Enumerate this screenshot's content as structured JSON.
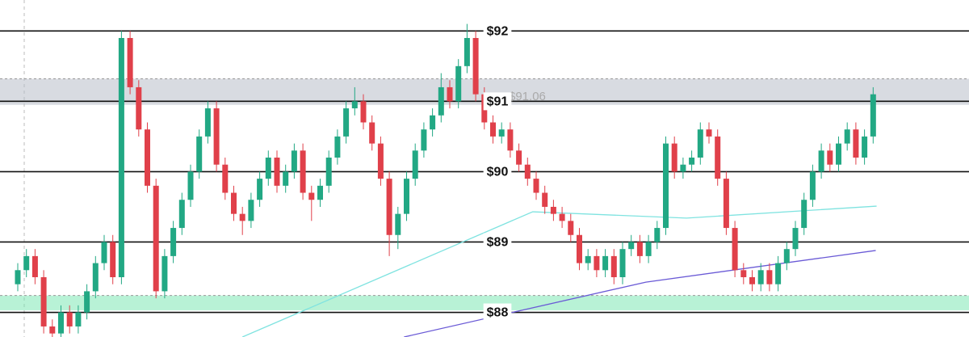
{
  "chart_data": {
    "type": "candlestick",
    "ylim": [
      87.65,
      92.44
    ],
    "up_color": "#22a884",
    "down_color": "#e0404a",
    "levels": [
      {
        "value": 92,
        "label": "$92"
      },
      {
        "value": 91,
        "label": "$91"
      },
      {
        "value": 90,
        "label": "$90"
      },
      {
        "value": 89,
        "label": "$89"
      },
      {
        "value": 88,
        "label": "$88"
      }
    ],
    "price_label": {
      "value": 91.06,
      "label": "$91.06"
    },
    "zones": [
      {
        "from": 90.95,
        "to": 91.32,
        "color": "#b8bec8"
      },
      {
        "from": 88.03,
        "to": 88.24,
        "color": "#7ee8b5"
      }
    ],
    "lines": [
      {
        "color": "#6a5ad6",
        "x": [
          44.7,
          72.7,
          99.3
        ],
        "values": [
          87.65,
          88.43,
          88.88
        ]
      },
      {
        "color": "#7fe3e0",
        "x": [
          26,
          59.6,
          77.4,
          99.4
        ],
        "values": [
          87.65,
          89.43,
          89.34,
          89.51
        ]
      }
    ],
    "ohlc": [
      [
        88.4,
        88.7,
        88.3,
        88.6
      ],
      [
        88.6,
        88.9,
        88.5,
        88.8
      ],
      [
        88.8,
        88.9,
        88.4,
        88.5
      ],
      [
        88.5,
        88.6,
        87.7,
        87.8
      ],
      [
        87.8,
        87.9,
        87.6,
        87.7
      ],
      [
        87.7,
        88.1,
        87.6,
        88.0
      ],
      [
        88.0,
        88.1,
        87.7,
        87.8
      ],
      [
        87.8,
        88.1,
        87.7,
        88.0
      ],
      [
        88.0,
        88.4,
        87.9,
        88.3
      ],
      [
        88.3,
        88.8,
        88.2,
        88.7
      ],
      [
        88.7,
        89.1,
        88.6,
        89.0
      ],
      [
        89.0,
        89.1,
        88.4,
        88.5
      ],
      [
        88.5,
        92.0,
        88.4,
        91.9
      ],
      [
        91.9,
        92.0,
        91.1,
        91.2
      ],
      [
        91.2,
        91.3,
        90.5,
        90.6
      ],
      [
        90.6,
        90.7,
        89.7,
        89.8
      ],
      [
        89.8,
        89.9,
        88.2,
        88.3
      ],
      [
        88.3,
        88.9,
        88.2,
        88.8
      ],
      [
        88.8,
        89.3,
        88.7,
        89.2
      ],
      [
        89.2,
        89.7,
        89.1,
        89.6
      ],
      [
        89.6,
        90.1,
        89.5,
        90.0
      ],
      [
        90.0,
        90.6,
        89.9,
        90.5
      ],
      [
        90.5,
        91.0,
        90.4,
        90.9
      ],
      [
        90.9,
        91.0,
        90.0,
        90.1
      ],
      [
        90.1,
        90.2,
        89.6,
        89.7
      ],
      [
        89.7,
        89.8,
        89.3,
        89.4
      ],
      [
        89.4,
        89.5,
        89.1,
        89.3
      ],
      [
        89.3,
        89.7,
        89.2,
        89.6
      ],
      [
        89.6,
        90.0,
        89.5,
        89.9
      ],
      [
        89.9,
        90.3,
        89.8,
        90.2
      ],
      [
        90.2,
        90.3,
        89.7,
        89.8
      ],
      [
        89.8,
        90.1,
        89.7,
        90.0
      ],
      [
        90.0,
        90.4,
        89.9,
        90.3
      ],
      [
        90.3,
        90.4,
        89.6,
        89.7
      ],
      [
        89.7,
        89.8,
        89.3,
        89.6
      ],
      [
        89.6,
        89.9,
        89.5,
        89.8
      ],
      [
        89.8,
        90.3,
        89.7,
        90.2
      ],
      [
        90.2,
        90.6,
        90.1,
        90.5
      ],
      [
        90.5,
        91.0,
        90.4,
        90.9
      ],
      [
        90.9,
        91.2,
        90.8,
        91.0
      ],
      [
        91.0,
        91.1,
        90.6,
        90.7
      ],
      [
        90.7,
        90.8,
        90.3,
        90.4
      ],
      [
        90.4,
        90.5,
        89.8,
        89.9
      ],
      [
        89.9,
        90.0,
        88.8,
        89.1
      ],
      [
        89.1,
        89.5,
        88.9,
        89.4
      ],
      [
        89.4,
        90.0,
        89.3,
        89.9
      ],
      [
        89.9,
        90.4,
        89.8,
        90.3
      ],
      [
        90.3,
        90.7,
        90.2,
        90.6
      ],
      [
        90.6,
        90.9,
        90.5,
        90.8
      ],
      [
        90.8,
        91.4,
        90.7,
        91.2
      ],
      [
        91.2,
        91.3,
        90.9,
        91.0
      ],
      [
        91.0,
        91.6,
        90.9,
        91.5
      ],
      [
        91.5,
        92.1,
        91.4,
        91.9
      ],
      [
        91.9,
        92.0,
        91.0,
        91.1
      ],
      [
        91.1,
        91.2,
        90.6,
        90.7
      ],
      [
        90.7,
        90.8,
        90.4,
        90.5
      ],
      [
        90.5,
        90.7,
        90.4,
        90.6
      ],
      [
        90.6,
        90.7,
        90.2,
        90.3
      ],
      [
        90.3,
        90.4,
        90.0,
        90.1
      ],
      [
        90.1,
        90.2,
        89.8,
        89.9
      ],
      [
        89.9,
        90.0,
        89.6,
        89.7
      ],
      [
        89.7,
        89.8,
        89.4,
        89.5
      ],
      [
        89.5,
        89.6,
        89.3,
        89.4
      ],
      [
        89.4,
        89.5,
        89.2,
        89.3
      ],
      [
        89.3,
        89.4,
        89.0,
        89.1
      ],
      [
        89.1,
        89.2,
        88.6,
        88.7
      ],
      [
        88.7,
        88.9,
        88.6,
        88.8
      ],
      [
        88.8,
        88.9,
        88.5,
        88.6
      ],
      [
        88.6,
        88.9,
        88.5,
        88.8
      ],
      [
        88.8,
        88.9,
        88.4,
        88.5
      ],
      [
        88.5,
        89.0,
        88.4,
        88.9
      ],
      [
        88.9,
        89.1,
        88.8,
        89.0
      ],
      [
        89.0,
        89.1,
        88.7,
        88.8
      ],
      [
        88.8,
        89.1,
        88.7,
        89.0
      ],
      [
        89.0,
        89.3,
        88.9,
        89.2
      ],
      [
        89.2,
        90.5,
        89.1,
        90.4
      ],
      [
        90.4,
        90.5,
        89.9,
        90.0
      ],
      [
        90.0,
        90.2,
        89.9,
        90.1
      ],
      [
        90.1,
        90.3,
        90.0,
        90.2
      ],
      [
        90.2,
        90.7,
        90.1,
        90.6
      ],
      [
        90.6,
        90.7,
        90.4,
        90.5
      ],
      [
        90.5,
        90.6,
        89.8,
        89.9
      ],
      [
        89.9,
        90.0,
        89.1,
        89.2
      ],
      [
        89.2,
        89.3,
        88.5,
        88.6
      ],
      [
        88.6,
        88.7,
        88.4,
        88.5
      ],
      [
        88.5,
        88.6,
        88.3,
        88.4
      ],
      [
        88.4,
        88.7,
        88.3,
        88.6
      ],
      [
        88.6,
        88.7,
        88.3,
        88.4
      ],
      [
        88.4,
        88.8,
        88.3,
        88.7
      ],
      [
        88.7,
        89.0,
        88.6,
        88.9
      ],
      [
        88.9,
        89.3,
        88.8,
        89.2
      ],
      [
        89.2,
        89.7,
        89.1,
        89.6
      ],
      [
        89.6,
        90.1,
        89.5,
        90.0
      ],
      [
        90.0,
        90.4,
        89.9,
        90.3
      ],
      [
        90.3,
        90.4,
        90.0,
        90.1
      ],
      [
        90.1,
        90.5,
        90.0,
        90.4
      ],
      [
        90.4,
        90.7,
        90.3,
        90.6
      ],
      [
        90.6,
        90.7,
        90.1,
        90.2
      ],
      [
        90.2,
        90.6,
        90.1,
        90.5
      ],
      [
        90.5,
        91.2,
        90.4,
        91.1
      ]
    ]
  }
}
